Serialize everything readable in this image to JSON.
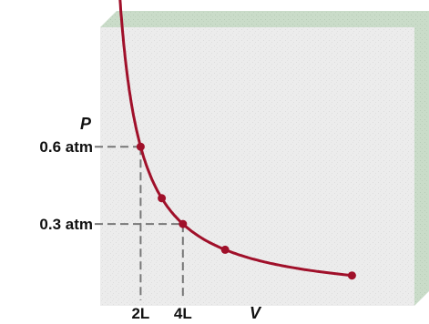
{
  "chart_data": {
    "type": "line",
    "xlabel": "V",
    "ylabel": "P",
    "x_ticks": [
      {
        "x": 2,
        "label": "2L"
      },
      {
        "x": 4,
        "label": "4L"
      }
    ],
    "y_ticks": [
      {
        "y": 0.6,
        "label": "0.6 atm"
      },
      {
        "y": 0.3,
        "label": "0.3 atm"
      }
    ],
    "series": [
      {
        "points": [
          {
            "x": 0.9,
            "y": 1.33
          },
          {
            "x": 2.0,
            "y": 0.6
          },
          {
            "x": 3.0,
            "y": 0.4
          },
          {
            "x": 4.0,
            "y": 0.3
          },
          {
            "x": 6.0,
            "y": 0.2
          },
          {
            "x": 12.0,
            "y": 0.1
          }
        ],
        "color": "#a0102a"
      }
    ],
    "guide_lines": [
      {
        "x": 2,
        "y": 0.6
      },
      {
        "x": 4,
        "y": 0.3
      }
    ],
    "colors": {
      "panel_face": "#eaeaea",
      "panel_top": "#c8dcc8",
      "panel_side": "#c7d9c7",
      "curve": "#a0102a",
      "guide": "#777777"
    },
    "k": 1.2
  }
}
